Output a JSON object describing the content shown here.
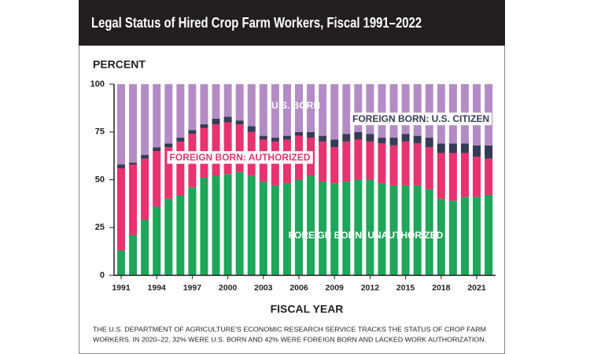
{
  "chart_data": {
    "type": "stacked_bar",
    "title": "Legal Status of Hired Crop Farm Workers, Fiscal 1991–2022",
    "y_label": "PERCENT",
    "x_label": "FISCAL YEAR",
    "note": [
      "THE U.S. DEPARTMENT OF AGRICULTURE'S ECONOMIC RESEARCH SERVICE TRACKS THE STATUS OF CROP FARM",
      "WORKERS. IN 2020–22, 32% WERE U.S. BORN AND 42% WERE FOREIGN BORN AND LACKED WORK AUTHORIZATION."
    ],
    "categories": [
      "1991",
      null,
      null,
      "1994",
      null,
      null,
      "1997",
      null,
      null,
      "2000",
      null,
      null,
      "2003",
      null,
      null,
      "2006",
      null,
      null,
      "2009",
      null,
      null,
      "2012",
      null,
      null,
      "2015",
      null,
      null,
      "2018",
      null,
      null,
      "2021",
      null
    ],
    "series": [
      {
        "name": "FOREIGN BORN: UNAUTHORIZED",
        "color": "#1ea65a",
        "values": [
          13,
          21,
          29,
          36,
          40,
          42,
          46,
          51,
          52,
          53,
          54,
          52,
          49,
          47,
          48,
          50,
          52,
          49,
          48,
          49,
          50,
          50,
          48,
          47,
          47,
          47,
          45,
          40,
          39,
          41,
          41,
          42
        ]
      },
      {
        "name": "FOREIGN BORN: AUTHORIZED",
        "color": "#e8336f",
        "values": [
          43,
          37,
          32,
          29,
          27,
          28,
          28,
          26,
          27,
          27,
          25,
          23,
          22,
          23,
          23,
          23,
          20,
          21,
          19,
          21,
          21,
          20,
          21,
          21,
          23,
          22,
          22,
          24,
          25,
          23,
          21,
          19
        ]
      },
      {
        "name": "FOREIGN BORN: U.S. CITIZEN",
        "color": "#353c55",
        "values": [
          2,
          1,
          2,
          2,
          2,
          2,
          2,
          2,
          3,
          3,
          2,
          3,
          2,
          2,
          2,
          2,
          3,
          3,
          4,
          4,
          4,
          4,
          3,
          4,
          4,
          4,
          5,
          5,
          5,
          5,
          6,
          7
        ]
      },
      {
        "name": "U.S. BORN",
        "color": "#b48cc5",
        "values": [
          42,
          41,
          37,
          33,
          31,
          28,
          24,
          21,
          18,
          17,
          19,
          22,
          27,
          28,
          27,
          25,
          25,
          27,
          29,
          26,
          25,
          26,
          28,
          28,
          26,
          27,
          28,
          31,
          31,
          31,
          32,
          32
        ]
      }
    ],
    "ylim": [
      0,
      100
    ],
    "yticks": [
      0,
      25,
      50,
      75,
      100
    ]
  }
}
